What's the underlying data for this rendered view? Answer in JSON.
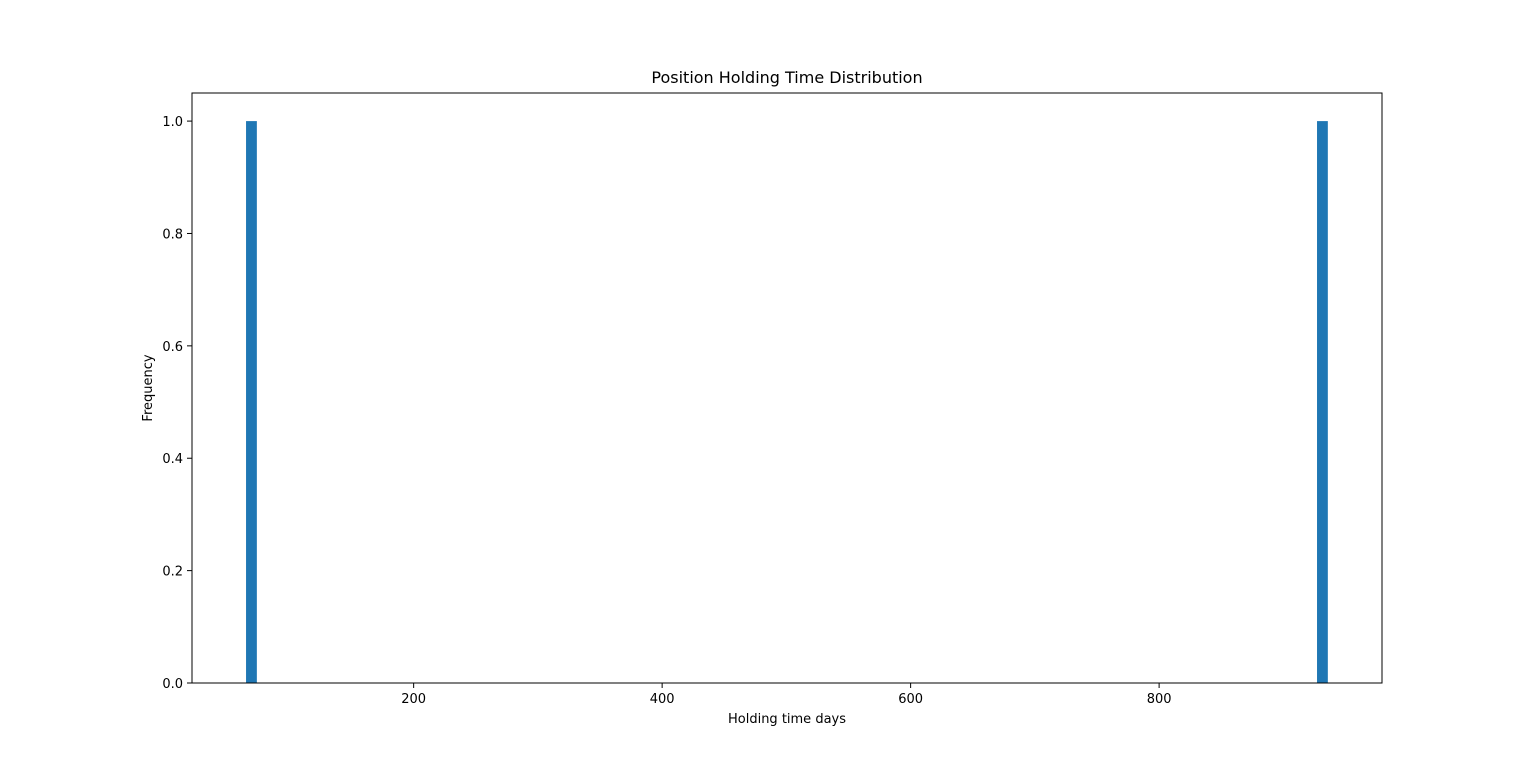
{
  "chart_data": {
    "type": "bar",
    "title": "Position Holding Time Distribution",
    "xlabel": "Holding time days",
    "ylabel": "Frequency",
    "xlim": [
      21.6,
      979.4
    ],
    "ylim": [
      0,
      1.05
    ],
    "bars": [
      {
        "x_start": 65.1,
        "x_end": 73.8,
        "value": 1.0
      },
      {
        "x_start": 927.1,
        "x_end": 935.8,
        "value": 1.0
      }
    ],
    "xticks": [
      {
        "value": 200,
        "label": "200"
      },
      {
        "value": 400,
        "label": "400"
      },
      {
        "value": 600,
        "label": "600"
      },
      {
        "value": 800,
        "label": "800"
      }
    ],
    "yticks": [
      {
        "value": 0.0,
        "label": "0.0"
      },
      {
        "value": 0.2,
        "label": "0.2"
      },
      {
        "value": 0.4,
        "label": "0.4"
      },
      {
        "value": 0.6,
        "label": "0.6"
      },
      {
        "value": 0.8,
        "label": "0.8"
      },
      {
        "value": 1.0,
        "label": "1.0"
      }
    ],
    "colors": {
      "bar": "#1f77b4",
      "axis": "#000000",
      "background": "#ffffff"
    },
    "grid": false
  }
}
